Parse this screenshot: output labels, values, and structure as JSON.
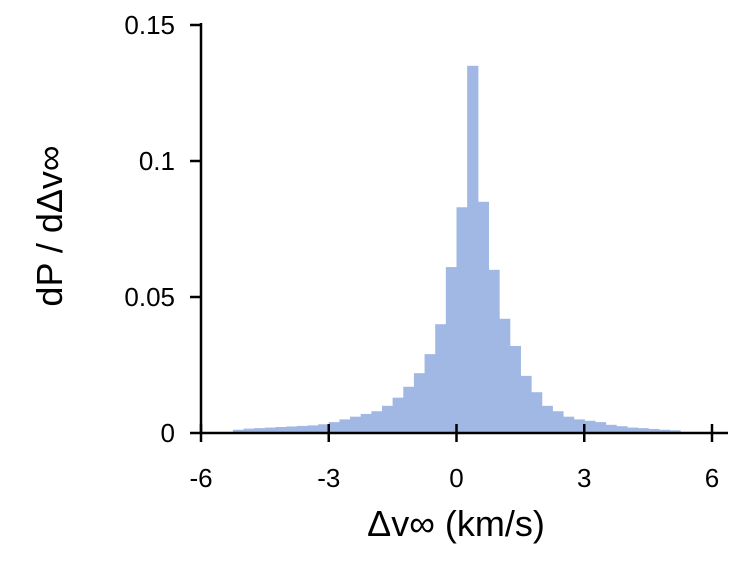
{
  "chart_data": {
    "type": "bar",
    "title": "",
    "xlabel": "Δv∞ (km/s)",
    "ylabel": "dP / dΔv∞",
    "xlim": [
      -6,
      6
    ],
    "ylim": [
      0,
      0.15
    ],
    "x_ticks": [
      "-6",
      "-3",
      "0",
      "3",
      "6"
    ],
    "y_ticks": [
      "0",
      "0.05",
      "0.1",
      "0.15"
    ],
    "grid": false,
    "legend": "none",
    "bar_color": "#a2b8e4",
    "bin_width": 0.25,
    "bins_start": [
      -5.25,
      -5.0,
      -4.75,
      -4.5,
      -4.25,
      -4.0,
      -3.75,
      -3.5,
      -3.25,
      -3.0,
      -2.75,
      -2.5,
      -2.25,
      -2.0,
      -1.75,
      -1.5,
      -1.25,
      -1.0,
      -0.75,
      -0.5,
      -0.25,
      0.0,
      0.25,
      0.5,
      0.75,
      1.0,
      1.25,
      1.5,
      1.75,
      2.0,
      2.25,
      2.5,
      2.75,
      3.0,
      3.25,
      3.5,
      3.75,
      4.0,
      4.25,
      4.5,
      4.75,
      5.0
    ],
    "values": [
      0.0012,
      0.0016,
      0.0018,
      0.002,
      0.0022,
      0.0024,
      0.0026,
      0.0028,
      0.0032,
      0.004,
      0.005,
      0.006,
      0.007,
      0.008,
      0.01,
      0.013,
      0.017,
      0.022,
      0.029,
      0.04,
      0.061,
      0.083,
      0.135,
      0.085,
      0.06,
      0.042,
      0.032,
      0.021,
      0.015,
      0.01,
      0.008,
      0.006,
      0.005,
      0.0045,
      0.004,
      0.003,
      0.0025,
      0.002,
      0.0018,
      0.0015,
      0.0012,
      0.001
    ]
  }
}
